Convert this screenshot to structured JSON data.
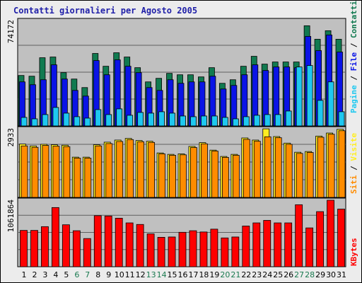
{
  "title": "Contatti giornalieri per Agosto 2005",
  "colors": {
    "pagine": "#1ec8f0",
    "file": "#0a14e6",
    "contatti": "#117a50",
    "siti": "#ff8c00",
    "visite": "#ffee22",
    "kbytes": "#ff0000",
    "weekday_label": "#000000",
    "weekend_label": "#1a7a50",
    "panel_bg": "#c0c0c0"
  },
  "chart_data": [
    {
      "type": "bar",
      "name": "requests",
      "categories": [
        "1",
        "2",
        "3",
        "4",
        "5",
        "6",
        "7",
        "8",
        "9",
        "10",
        "11",
        "12",
        "13",
        "14",
        "15",
        "16",
        "17",
        "18",
        "19",
        "20",
        "21",
        "22",
        "23",
        "24",
        "25",
        "26",
        "27",
        "28",
        "29",
        "30",
        "31"
      ],
      "weekend_days": [
        "6",
        "7",
        "13",
        "14",
        "20",
        "21",
        "27",
        "28"
      ],
      "ymax_label": "74172",
      "ylim": [
        0,
        74172
      ],
      "legend": {
        "parts": [
          "Pagine",
          "File",
          "Contatti"
        ],
        "separator": " / "
      },
      "series": [
        {
          "name": "Contatti",
          "values": [
            35500,
            35000,
            48000,
            48500,
            37500,
            33000,
            27000,
            51000,
            42000,
            51500,
            48500,
            41000,
            31000,
            33500,
            37000,
            36000,
            36000,
            34500,
            41000,
            30000,
            32500,
            42000,
            49000,
            43500,
            45000,
            45000,
            45000,
            70500,
            61000,
            67000,
            61000
          ]
        },
        {
          "name": "File",
          "values": [
            31000,
            29000,
            32500,
            43000,
            33000,
            25000,
            21000,
            46000,
            36000,
            46500,
            42000,
            37500,
            27000,
            25000,
            32500,
            30000,
            31000,
            31000,
            35000,
            26000,
            28500,
            36000,
            43000,
            39000,
            41500,
            41500,
            41000,
            63000,
            53000,
            64000,
            52000
          ]
        },
        {
          "name": "Pagine",
          "values": [
            6000,
            5000,
            8000,
            13000,
            9000,
            6500,
            5500,
            11500,
            8000,
            12000,
            7500,
            9500,
            9000,
            10000,
            9000,
            7000,
            6500,
            7000,
            7000,
            6000,
            5000,
            6500,
            7500,
            8000,
            8000,
            10500,
            41500,
            42500,
            18000,
            31000,
            10000
          ]
        }
      ]
    },
    {
      "type": "bar",
      "name": "visits",
      "categories": [
        "1",
        "2",
        "3",
        "4",
        "5",
        "6",
        "7",
        "8",
        "9",
        "10",
        "11",
        "12",
        "13",
        "14",
        "15",
        "16",
        "17",
        "18",
        "19",
        "20",
        "21",
        "22",
        "23",
        "24",
        "25",
        "26",
        "27",
        "28",
        "29",
        "30",
        "31"
      ],
      "ymax_label": "2933",
      "ylim": [
        0,
        2933
      ],
      "legend": {
        "parts": [
          "Siti",
          "Visite"
        ],
        "separator": " / "
      },
      "series": [
        {
          "name": "Visite",
          "values": [
            2280,
            2200,
            2270,
            2250,
            2230,
            1720,
            1720,
            2250,
            2360,
            2450,
            2520,
            2430,
            2400,
            1900,
            1840,
            1860,
            2180,
            2340,
            2020,
            1750,
            1840,
            2540,
            2450,
            2930,
            2600,
            2320,
            1930,
            1960,
            2620,
            2750,
            2910
          ]
        },
        {
          "name": "Siti",
          "values": [
            2200,
            2140,
            2220,
            2190,
            2170,
            1680,
            1680,
            2200,
            2300,
            2390,
            2470,
            2380,
            2350,
            1860,
            1800,
            1820,
            2130,
            2290,
            1980,
            1710,
            1800,
            2480,
            2400,
            2590,
            2550,
            2270,
            1880,
            1920,
            2570,
            2700,
            2850
          ]
        }
      ]
    },
    {
      "type": "bar",
      "name": "kbytes",
      "categories": [
        "1",
        "2",
        "3",
        "4",
        "5",
        "6",
        "7",
        "8",
        "9",
        "10",
        "11",
        "12",
        "13",
        "14",
        "15",
        "16",
        "17",
        "18",
        "19",
        "20",
        "21",
        "22",
        "23",
        "24",
        "25",
        "26",
        "27",
        "28",
        "29",
        "30",
        "31"
      ],
      "ymax_label": "1061864",
      "ylim": [
        0,
        1061864
      ],
      "legend": {
        "parts": [
          "KBytes"
        ],
        "separator": " / "
      },
      "series": [
        {
          "name": "KBytes",
          "values": [
            580000,
            580000,
            640000,
            945000,
            670000,
            575000,
            450000,
            815000,
            810000,
            775000,
            700000,
            675000,
            525000,
            470000,
            475000,
            550000,
            575000,
            555000,
            600000,
            460000,
            475000,
            650000,
            700000,
            740000,
            700000,
            700000,
            990000,
            620000,
            880000,
            1061864,
            920000
          ]
        }
      ]
    }
  ]
}
